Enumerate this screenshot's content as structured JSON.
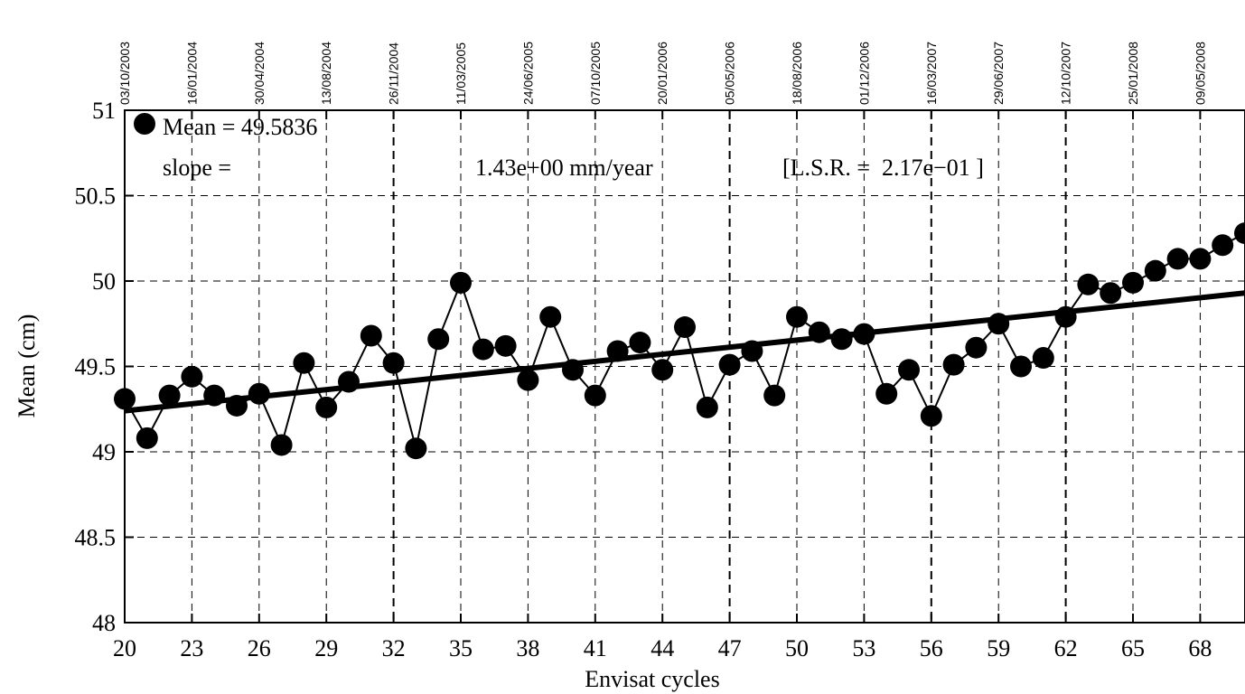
{
  "chart_data": {
    "type": "line",
    "xlabel": "Envisat cycles",
    "ylabel": "Mean (cm)",
    "xlim": [
      20,
      70
    ],
    "ylim": [
      48,
      51
    ],
    "x_ticks": [
      20,
      23,
      26,
      29,
      32,
      35,
      38,
      41,
      44,
      47,
      50,
      53,
      56,
      59,
      62,
      65,
      68
    ],
    "y_ticks": [
      "48",
      "48.5",
      "49",
      "49.5",
      "50",
      "50.5",
      "51"
    ],
    "top_axis_dates": [
      "03/10/2003",
      "16/01/2004",
      "30/04/2004",
      "13/08/2004",
      "26/11/2004",
      "11/03/2005",
      "24/06/2005",
      "07/10/2005",
      "20/01/2006",
      "05/05/2006",
      "18/08/2006",
      "01/12/2006",
      "16/03/2007",
      "29/06/2007",
      "12/10/2007",
      "25/01/2008",
      "09/05/2008"
    ],
    "year_boundary_cycles": [
      32,
      47,
      56,
      62
    ],
    "grid": true,
    "legend_position": "top-left",
    "annotations": {
      "mean_label": "Mean = 49.5836",
      "slope_label": "slope =",
      "slope_value": "1.43e+00 mm/year",
      "lsr": "[L.S.R. =  2.17e−01 ]"
    },
    "series": [
      {
        "name": "Mean = 49.5836",
        "style": "markers-line",
        "x": [
          20,
          21,
          22,
          23,
          24,
          25,
          26,
          27,
          28,
          29,
          30,
          31,
          32,
          33,
          34,
          35,
          36,
          37,
          38,
          39,
          40,
          41,
          42,
          43,
          44,
          45,
          46,
          47,
          48,
          49,
          50,
          51,
          52,
          53,
          54,
          55,
          56,
          57,
          58,
          59,
          60,
          61,
          62,
          63,
          64,
          65,
          66,
          67,
          68,
          69,
          70
        ],
        "values": [
          49.31,
          49.08,
          49.33,
          49.44,
          49.33,
          49.27,
          49.34,
          49.04,
          49.52,
          49.26,
          49.41,
          49.68,
          49.52,
          49.02,
          49.66,
          49.99,
          49.6,
          49.62,
          49.42,
          49.79,
          49.48,
          49.33,
          49.59,
          49.64,
          49.48,
          49.73,
          49.26,
          49.51,
          49.59,
          49.33,
          49.79,
          49.7,
          49.66,
          49.69,
          49.34,
          49.48,
          49.21,
          49.51,
          49.61,
          49.75,
          49.5,
          49.55,
          49.79,
          49.98,
          49.93,
          49.99,
          50.06,
          50.13,
          50.13,
          50.21,
          50.28
        ]
      },
      {
        "name": "",
        "style": "thick-line",
        "x": [
          20,
          70
        ],
        "values": [
          49.24,
          49.93
        ]
      }
    ]
  },
  "colors": {
    "ink": "#000000",
    "background": "#ffffff",
    "grid": "#000000"
  }
}
